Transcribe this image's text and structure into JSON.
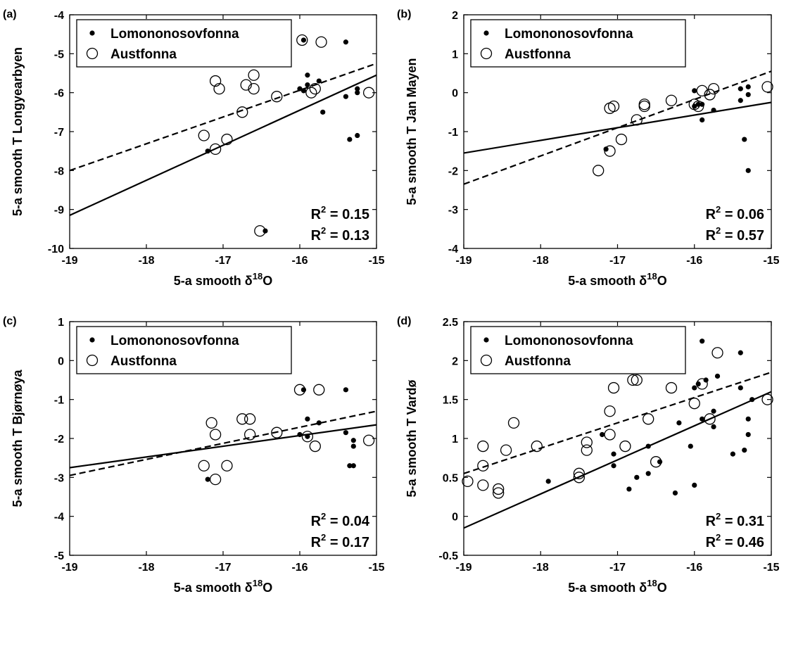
{
  "chart_data": [
    {
      "type": "scatter",
      "panel_label": "(a)",
      "xlabel": "5-a smooth δ18O",
      "xlabel_main": "5-a smooth δ",
      "xlabel_sup": "18",
      "xlabel_tail": "O",
      "ylabel": "5-a smooth T Longyearbyen",
      "xlim": [
        -19,
        -15
      ],
      "ylim": [
        -10,
        -4
      ],
      "xticks": [
        "-19",
        "-18",
        "-17",
        "-16",
        "-15"
      ],
      "yticks": [
        "-10",
        "-9",
        "-8",
        "-7",
        "-6",
        "-5",
        "-4"
      ],
      "legend_position": "top-left",
      "series": [
        {
          "name": "Lomononosovfonna",
          "marker": "filled-dot",
          "points": [
            [
              -17.2,
              -7.5
            ],
            [
              -15.95,
              -4.65
            ],
            [
              -15.4,
              -4.7
            ],
            [
              -15.9,
              -5.55
            ],
            [
              -16.0,
              -5.9
            ],
            [
              -15.95,
              -5.95
            ],
            [
              -15.9,
              -5.8
            ],
            [
              -15.75,
              -5.7
            ],
            [
              -15.7,
              -6.5
            ],
            [
              -15.4,
              -6.1
            ],
            [
              -15.25,
              -5.9
            ],
            [
              -15.25,
              -6.0
            ],
            [
              -15.35,
              -7.2
            ],
            [
              -15.25,
              -7.1
            ],
            [
              -16.45,
              -9.55
            ]
          ]
        },
        {
          "name": "Austfonna",
          "marker": "open-circle",
          "points": [
            [
              -17.25,
              -7.1
            ],
            [
              -17.1,
              -7.45
            ],
            [
              -17.1,
              -5.7
            ],
            [
              -17.05,
              -5.9
            ],
            [
              -16.95,
              -7.2
            ],
            [
              -16.75,
              -6.5
            ],
            [
              -16.7,
              -5.8
            ],
            [
              -16.6,
              -5.55
            ],
            [
              -16.6,
              -5.9
            ],
            [
              -16.3,
              -6.1
            ],
            [
              -15.97,
              -4.65
            ],
            [
              -15.72,
              -4.7
            ],
            [
              -15.85,
              -6.0
            ],
            [
              -15.8,
              -5.9
            ],
            [
              -15.1,
              -6.0
            ],
            [
              -16.52,
              -9.55
            ]
          ]
        }
      ],
      "fits": [
        {
          "style": "solid",
          "from": [
            -19,
            -9.15
          ],
          "to": [
            -15,
            -5.55
          ]
        },
        {
          "style": "dashed",
          "from": [
            -19,
            -8.0
          ],
          "to": [
            -15,
            -5.25
          ]
        }
      ],
      "r2_values": [
        "0.15",
        "0.13"
      ]
    },
    {
      "type": "scatter",
      "panel_label": "(b)",
      "xlabel": "5-a smooth δ18O",
      "xlabel_main": "5-a smooth δ",
      "xlabel_sup": "18",
      "xlabel_tail": "O",
      "ylabel": "5-a smooth T Jan Mayen",
      "xlim": [
        -19,
        -15
      ],
      "ylim": [
        -4,
        2
      ],
      "xticks": [
        "-19",
        "-18",
        "-17",
        "-16",
        "-15"
      ],
      "yticks": [
        "-4",
        "-3",
        "-2",
        "-1",
        "0",
        "1",
        "2"
      ],
      "legend_position": "top-left",
      "series": [
        {
          "name": "Lomononosovfonna",
          "marker": "filled-dot",
          "points": [
            [
              -17.15,
              -1.45
            ],
            [
              -16.0,
              0.05
            ],
            [
              -16.0,
              -0.35
            ],
            [
              -15.95,
              -0.3
            ],
            [
              -15.9,
              -0.3
            ],
            [
              -15.9,
              -0.7
            ],
            [
              -15.75,
              -0.45
            ],
            [
              -15.4,
              0.1
            ],
            [
              -15.4,
              -0.2
            ],
            [
              -15.3,
              0.15
            ],
            [
              -15.3,
              -0.05
            ],
            [
              -15.35,
              -1.2
            ],
            [
              -15.3,
              -2.0
            ]
          ]
        },
        {
          "name": "Austfonna",
          "marker": "open-circle",
          "points": [
            [
              -17.25,
              -2.0
            ],
            [
              -17.1,
              -1.5
            ],
            [
              -17.1,
              -0.4
            ],
            [
              -17.05,
              -0.35
            ],
            [
              -16.95,
              -1.2
            ],
            [
              -16.75,
              -0.7
            ],
            [
              -16.65,
              -0.3
            ],
            [
              -16.65,
              -0.35
            ],
            [
              -16.3,
              -0.2
            ],
            [
              -16.0,
              -0.3
            ],
            [
              -15.95,
              -0.35
            ],
            [
              -15.9,
              0.05
            ],
            [
              -15.8,
              -0.05
            ],
            [
              -15.75,
              0.1
            ],
            [
              -15.05,
              0.15
            ]
          ]
        }
      ],
      "fits": [
        {
          "style": "solid",
          "from": [
            -19,
            -1.55
          ],
          "to": [
            -15,
            -0.25
          ]
        },
        {
          "style": "dashed",
          "from": [
            -19,
            -2.35
          ],
          "to": [
            -15,
            0.55
          ]
        }
      ],
      "r2_values": [
        "0.06",
        "0.57"
      ]
    },
    {
      "type": "scatter",
      "panel_label": "(c)",
      "xlabel": "5-a smooth δ18O",
      "xlabel_main": "5-a smooth δ",
      "xlabel_sup": "18",
      "xlabel_tail": "O",
      "ylabel": "5-a smooth T Bjørnøya",
      "xlim": [
        -19,
        -15
      ],
      "ylim": [
        -5,
        1
      ],
      "xticks": [
        "-19",
        "-18",
        "-17",
        "-16",
        "-15"
      ],
      "yticks": [
        "-5",
        "-4",
        "-3",
        "-2",
        "-1",
        "0",
        "1"
      ],
      "legend_position": "top-left",
      "series": [
        {
          "name": "Lomononosovfonna",
          "marker": "filled-dot",
          "points": [
            [
              -17.2,
              -3.05
            ],
            [
              -15.95,
              -0.75
            ],
            [
              -15.4,
              -0.75
            ],
            [
              -15.9,
              -1.5
            ],
            [
              -16.0,
              -1.9
            ],
            [
              -15.9,
              -1.95
            ],
            [
              -15.75,
              -1.6
            ],
            [
              -15.4,
              -1.85
            ],
            [
              -15.3,
              -2.05
            ],
            [
              -15.3,
              -2.2
            ],
            [
              -15.35,
              -2.7
            ],
            [
              -15.3,
              -2.7
            ]
          ]
        },
        {
          "name": "Austfonna",
          "marker": "open-circle",
          "points": [
            [
              -17.25,
              -2.7
            ],
            [
              -17.1,
              -3.05
            ],
            [
              -17.15,
              -1.6
            ],
            [
              -17.1,
              -1.9
            ],
            [
              -16.95,
              -2.7
            ],
            [
              -16.75,
              -1.5
            ],
            [
              -16.65,
              -1.5
            ],
            [
              -16.65,
              -1.9
            ],
            [
              -16.3,
              -1.85
            ],
            [
              -16.0,
              -0.75
            ],
            [
              -15.75,
              -0.75
            ],
            [
              -15.9,
              -1.95
            ],
            [
              -15.8,
              -2.2
            ],
            [
              -15.1,
              -2.05
            ]
          ]
        }
      ],
      "fits": [
        {
          "style": "solid",
          "from": [
            -19,
            -2.75
          ],
          "to": [
            -15,
            -1.65
          ]
        },
        {
          "style": "dashed",
          "from": [
            -19,
            -2.95
          ],
          "to": [
            -15,
            -1.3
          ]
        }
      ],
      "r2_values": [
        "0.04",
        "0.17"
      ]
    },
    {
      "type": "scatter",
      "panel_label": "(d)",
      "xlabel": "5-a smooth δ18O",
      "xlabel_main": "5-a smooth δ",
      "xlabel_sup": "18",
      "xlabel_tail": "O",
      "ylabel": "5-a smooth T Vardø",
      "xlim": [
        -19,
        -15
      ],
      "ylim": [
        -0.5,
        2.5
      ],
      "xticks": [
        "-19",
        "-18",
        "-17",
        "-16",
        "-15"
      ],
      "yticks": [
        "-0.5",
        "0",
        "0.5",
        "1",
        "1.5",
        "2",
        "2.5"
      ],
      "legend_position": "top-left",
      "series": [
        {
          "name": "Lomononosovfonna",
          "marker": "filled-dot",
          "points": [
            [
              -17.9,
              0.45
            ],
            [
              -17.2,
              1.05
            ],
            [
              -17.05,
              0.8
            ],
            [
              -17.05,
              0.65
            ],
            [
              -16.85,
              0.35
            ],
            [
              -16.75,
              0.5
            ],
            [
              -16.6,
              0.55
            ],
            [
              -16.6,
              0.9
            ],
            [
              -16.45,
              0.7
            ],
            [
              -16.25,
              0.3
            ],
            [
              -16.2,
              1.2
            ],
            [
              -16.05,
              0.9
            ],
            [
              -16.0,
              0.4
            ],
            [
              -16.0,
              1.65
            ],
            [
              -15.95,
              1.7
            ],
            [
              -15.9,
              2.25
            ],
            [
              -15.9,
              1.25
            ],
            [
              -15.85,
              1.75
            ],
            [
              -15.75,
              1.35
            ],
            [
              -15.75,
              1.15
            ],
            [
              -15.7,
              1.8
            ],
            [
              -15.5,
              0.8
            ],
            [
              -15.4,
              1.65
            ],
            [
              -15.4,
              2.1
            ],
            [
              -15.35,
              0.85
            ],
            [
              -15.3,
              1.05
            ],
            [
              -15.3,
              1.25
            ],
            [
              -15.25,
              1.5
            ]
          ]
        },
        {
          "name": "Austfonna",
          "marker": "open-circle",
          "points": [
            [
              -18.95,
              0.45
            ],
            [
              -18.75,
              0.4
            ],
            [
              -18.75,
              0.65
            ],
            [
              -18.75,
              0.9
            ],
            [
              -18.55,
              0.35
            ],
            [
              -18.55,
              0.3
            ],
            [
              -18.45,
              0.85
            ],
            [
              -18.35,
              1.2
            ],
            [
              -18.05,
              0.9
            ],
            [
              -17.5,
              0.5
            ],
            [
              -17.5,
              0.55
            ],
            [
              -17.4,
              0.85
            ],
            [
              -17.4,
              0.95
            ],
            [
              -17.1,
              1.35
            ],
            [
              -17.1,
              1.05
            ],
            [
              -17.05,
              1.65
            ],
            [
              -16.9,
              0.9
            ],
            [
              -16.8,
              1.75
            ],
            [
              -16.75,
              1.75
            ],
            [
              -16.6,
              1.25
            ],
            [
              -16.5,
              0.7
            ],
            [
              -16.3,
              1.65
            ],
            [
              -16.0,
              1.45
            ],
            [
              -15.9,
              1.7
            ],
            [
              -15.8,
              1.25
            ],
            [
              -15.7,
              2.1
            ],
            [
              -15.05,
              1.5
            ]
          ]
        }
      ],
      "fits": [
        {
          "style": "solid",
          "from": [
            -19,
            -0.15
          ],
          "to": [
            -15,
            1.6
          ]
        },
        {
          "style": "dashed",
          "from": [
            -19,
            0.55
          ],
          "to": [
            -15,
            1.85
          ]
        }
      ],
      "r2_values": [
        "0.31",
        "0.46"
      ]
    }
  ],
  "r2_prefix": "R",
  "r2_sup": "2",
  "r2_eq": " = "
}
